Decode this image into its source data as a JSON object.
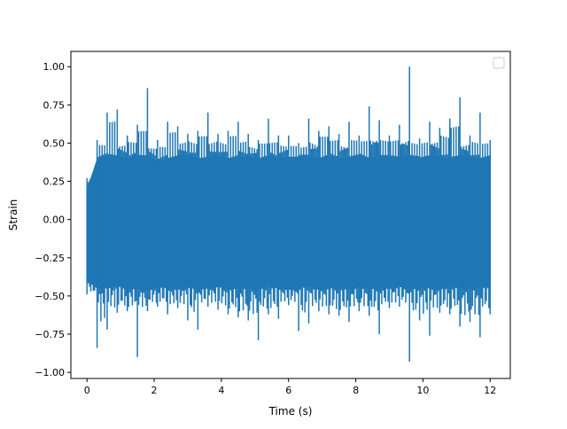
{
  "chart_data": {
    "type": "line",
    "title": "",
    "xlabel": "Time (s)",
    "ylabel": "Strain",
    "xlim": [
      -0.48,
      12.6
    ],
    "ylim": [
      -1.04,
      1.1
    ],
    "xticks": [
      0,
      2,
      4,
      6,
      8,
      10,
      12
    ],
    "xtick_labels": [
      "0",
      "2",
      "4",
      "6",
      "8",
      "10",
      "12"
    ],
    "yticks": [
      -1.0,
      -0.75,
      -0.5,
      -0.25,
      0.0,
      0.25,
      0.5,
      0.75,
      1.0
    ],
    "ytick_labels": [
      "−1.00",
      "−0.75",
      "−0.50",
      "−0.25",
      "0.00",
      "0.25",
      "0.50",
      "0.75",
      "1.00"
    ],
    "grid": false,
    "legend": {
      "placement": "upper-right",
      "entries": []
    },
    "series": [
      {
        "color": "#1f77b4",
        "x": [
          0.0,
          0.3,
          0.6,
          0.9,
          1.2,
          1.5,
          1.8,
          2.1,
          2.4,
          2.7,
          3.0,
          3.3,
          3.6,
          3.9,
          4.2,
          4.5,
          4.8,
          5.1,
          5.4,
          5.7,
          6.0,
          6.3,
          6.6,
          6.9,
          7.2,
          7.5,
          7.8,
          8.1,
          8.4,
          8.7,
          9.0,
          9.3,
          9.6,
          9.9,
          10.2,
          10.5,
          10.8,
          11.1,
          11.4,
          11.7,
          12.0
        ],
        "y_max": [
          0.27,
          0.52,
          0.7,
          0.72,
          0.55,
          0.62,
          0.86,
          0.52,
          0.64,
          0.61,
          0.56,
          0.58,
          0.7,
          0.56,
          0.58,
          0.64,
          0.56,
          0.52,
          0.66,
          0.55,
          0.55,
          0.5,
          0.66,
          0.58,
          0.61,
          0.56,
          0.64,
          0.55,
          0.74,
          0.65,
          0.55,
          0.62,
          1.0,
          0.53,
          0.64,
          0.6,
          0.66,
          0.8,
          0.55,
          0.7,
          0.52
        ],
        "y_min": [
          -0.49,
          -0.84,
          -0.72,
          -0.61,
          -0.6,
          -0.9,
          -0.6,
          -0.57,
          -0.62,
          -0.58,
          -0.66,
          -0.72,
          -0.57,
          -0.59,
          -0.62,
          -0.64,
          -0.66,
          -0.79,
          -0.62,
          -0.65,
          -0.56,
          -0.73,
          -0.68,
          -0.6,
          -0.62,
          -0.63,
          -0.67,
          -0.6,
          -0.63,
          -0.75,
          -0.58,
          -0.57,
          -0.93,
          -0.66,
          -0.76,
          -0.61,
          -0.62,
          -0.7,
          -0.67,
          -0.77,
          -0.62
        ],
        "y_upper": [
          0.2,
          0.4,
          0.42,
          0.42,
          0.4,
          0.42,
          0.42,
          0.38,
          0.4,
          0.42,
          0.42,
          0.4,
          0.41,
          0.42,
          0.4,
          0.42,
          0.41,
          0.4,
          0.42,
          0.4,
          0.41,
          0.41,
          0.42,
          0.4,
          0.42,
          0.4,
          0.41,
          0.42,
          0.4,
          0.42,
          0.41,
          0.41,
          0.42,
          0.4,
          0.42,
          0.41,
          0.4,
          0.42,
          0.41,
          0.4,
          0.42
        ],
        "y_lower": [
          -0.4,
          -0.45,
          -0.45,
          -0.43,
          -0.46,
          -0.45,
          -0.47,
          -0.44,
          -0.45,
          -0.46,
          -0.44,
          -0.46,
          -0.45,
          -0.44,
          -0.46,
          -0.45,
          -0.45,
          -0.46,
          -0.44,
          -0.45,
          -0.46,
          -0.45,
          -0.44,
          -0.46,
          -0.45,
          -0.45,
          -0.46,
          -0.44,
          -0.45,
          -0.46,
          -0.45,
          -0.44,
          -0.46,
          -0.45,
          -0.45,
          -0.46,
          -0.44,
          -0.45,
          -0.46,
          -0.45,
          -0.44
        ]
      }
    ]
  }
}
